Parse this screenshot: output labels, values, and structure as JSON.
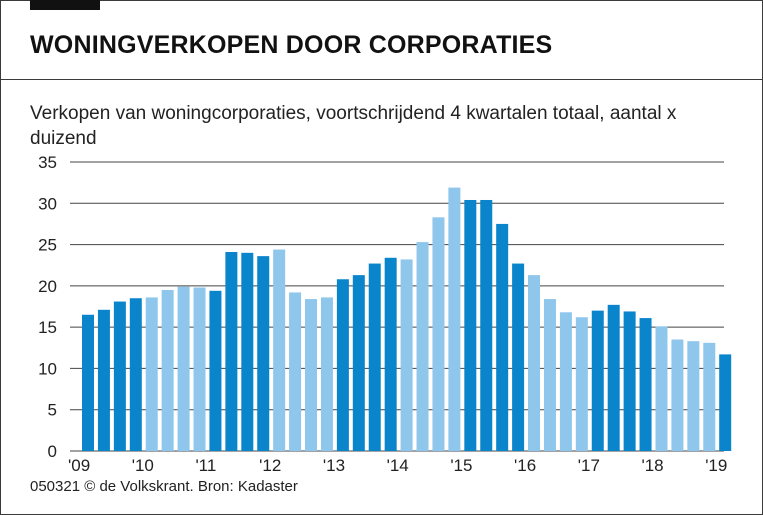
{
  "header": {
    "title": "WONINGVERKOPEN DOOR CORPORATIES",
    "subtitle": "Verkopen van woningcorporaties, voortschrijdend 4 kwartalen totaal, aantal x duizend"
  },
  "footer": {
    "source": "050321 © de Volkskrant. Bron: Kadaster"
  },
  "colors": {
    "dark": "#0a85cc",
    "light": "#8fc6ec",
    "grid": "#444444"
  },
  "chart_data": {
    "type": "bar",
    "title": "WONINGVERKOPEN DOOR CORPORATIES",
    "subtitle": "Verkopen van woningcorporaties, voortschrijdend 4 kwartalen totaal, aantal x duizend",
    "xlabel": "",
    "ylabel": "",
    "ylim": [
      0,
      35
    ],
    "yticks": [
      "0",
      "5",
      "10",
      "15",
      "20",
      "25",
      "30",
      "35"
    ],
    "grid": true,
    "x_tick_labels": [
      "'09",
      "'10",
      "'11",
      "'12",
      "'13",
      "'14",
      "'15",
      "'16",
      "'17",
      "'18",
      "'19"
    ],
    "years": [
      2009,
      2010,
      2011,
      2012,
      2013,
      2014,
      2015,
      2016,
      2017,
      2018,
      2019
    ],
    "bars_per_year": 4,
    "values": [
      16.5,
      17.1,
      18.1,
      18.5,
      18.6,
      19.5,
      19.9,
      19.8,
      19.4,
      24.1,
      24.0,
      23.6,
      24.4,
      19.2,
      18.4,
      18.6,
      20.8,
      21.3,
      22.7,
      23.4,
      23.2,
      25.3,
      28.3,
      31.9,
      30.4,
      30.4,
      27.5,
      22.7,
      21.3,
      18.4,
      16.8,
      16.2,
      17.0,
      17.7,
      16.9,
      16.1,
      15.1,
      13.5,
      13.3,
      13.1,
      11.7
    ],
    "color_note": "bars alternate dark/light blue per year"
  }
}
